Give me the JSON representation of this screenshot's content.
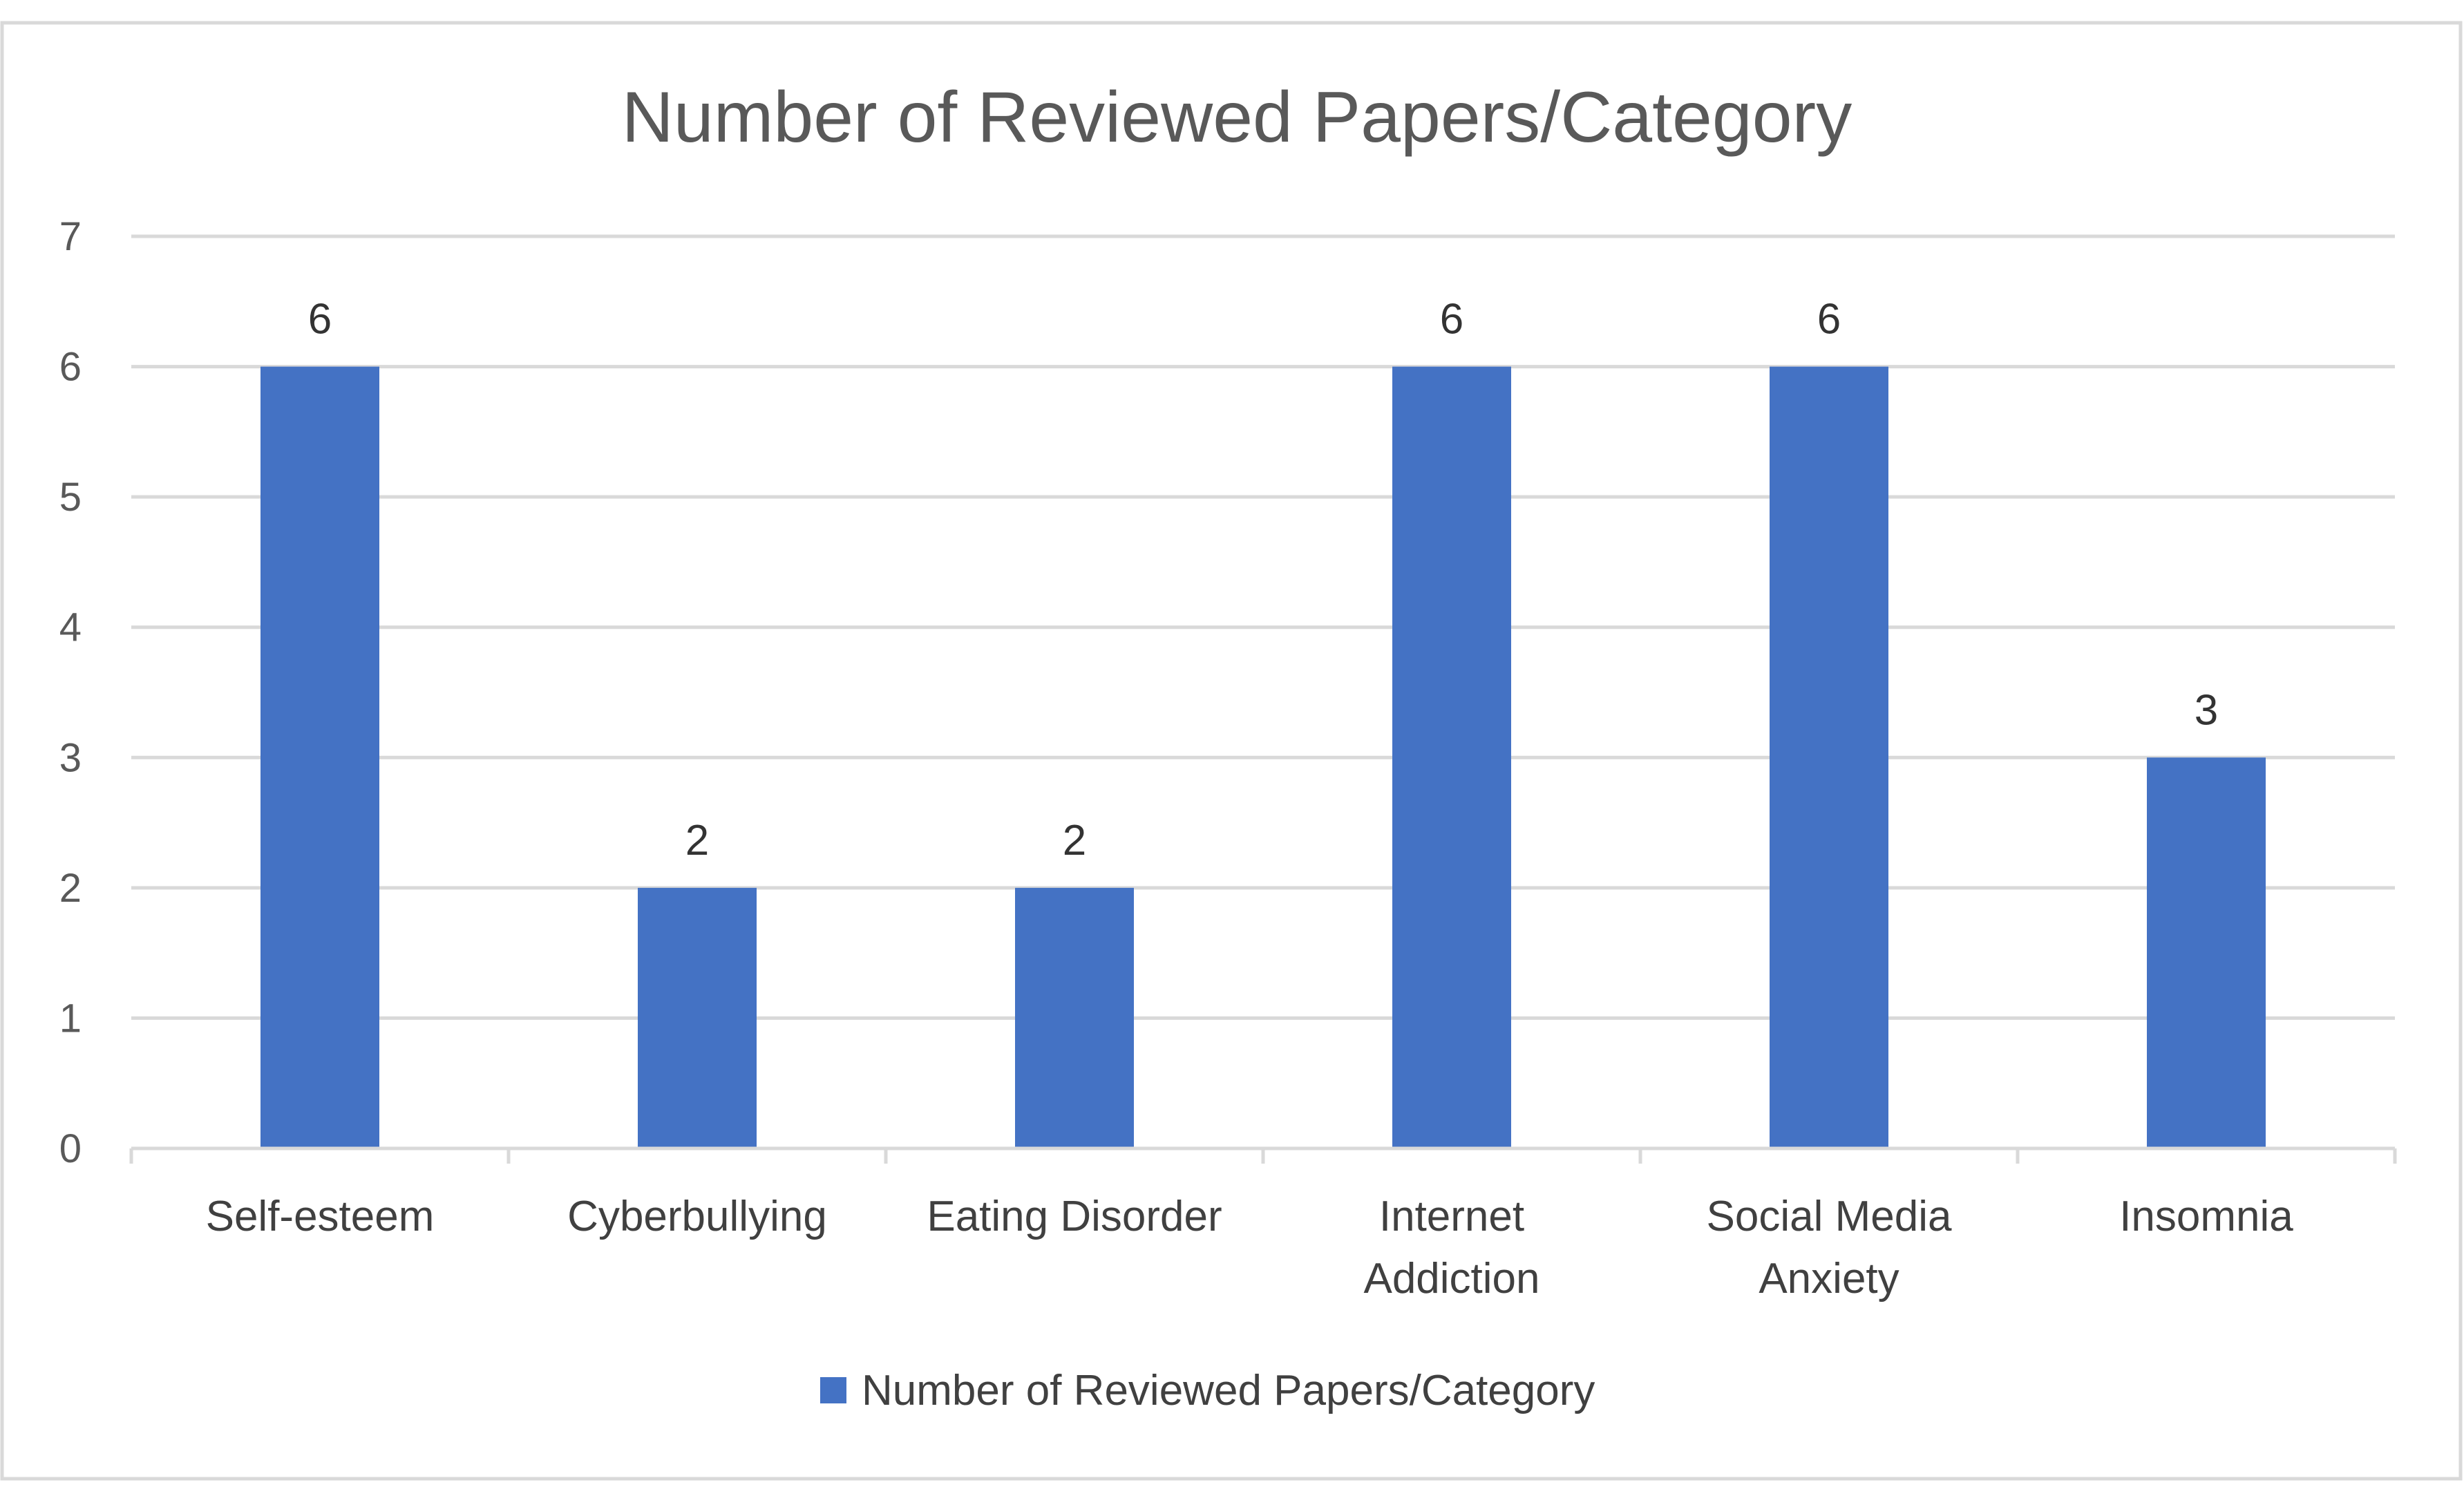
{
  "chart_data": {
    "type": "bar",
    "title": "Number of Reviewed Papers/Category",
    "categories": [
      [
        "Self-esteem"
      ],
      [
        "Cyberbullying"
      ],
      [
        "Eating Disorder"
      ],
      [
        "Internet",
        "Addiction"
      ],
      [
        "Social Media",
        "Anxiety"
      ],
      [
        "Insomnia"
      ]
    ],
    "series": [
      {
        "name": "Number of Reviewed Papers/Category",
        "values": [
          6,
          2,
          2,
          6,
          6,
          3
        ],
        "color": "#4472C4"
      }
    ],
    "yticks": [
      "0",
      "1",
      "2",
      "3",
      "4",
      "5",
      "6",
      "7"
    ],
    "ylim": [
      0,
      7
    ],
    "grid": true,
    "data_labels": true,
    "legend_position": "bottom",
    "colors": {
      "gridline": "#D9D9D9",
      "border": "#D9D9D9",
      "bar": "#4472C4"
    }
  }
}
